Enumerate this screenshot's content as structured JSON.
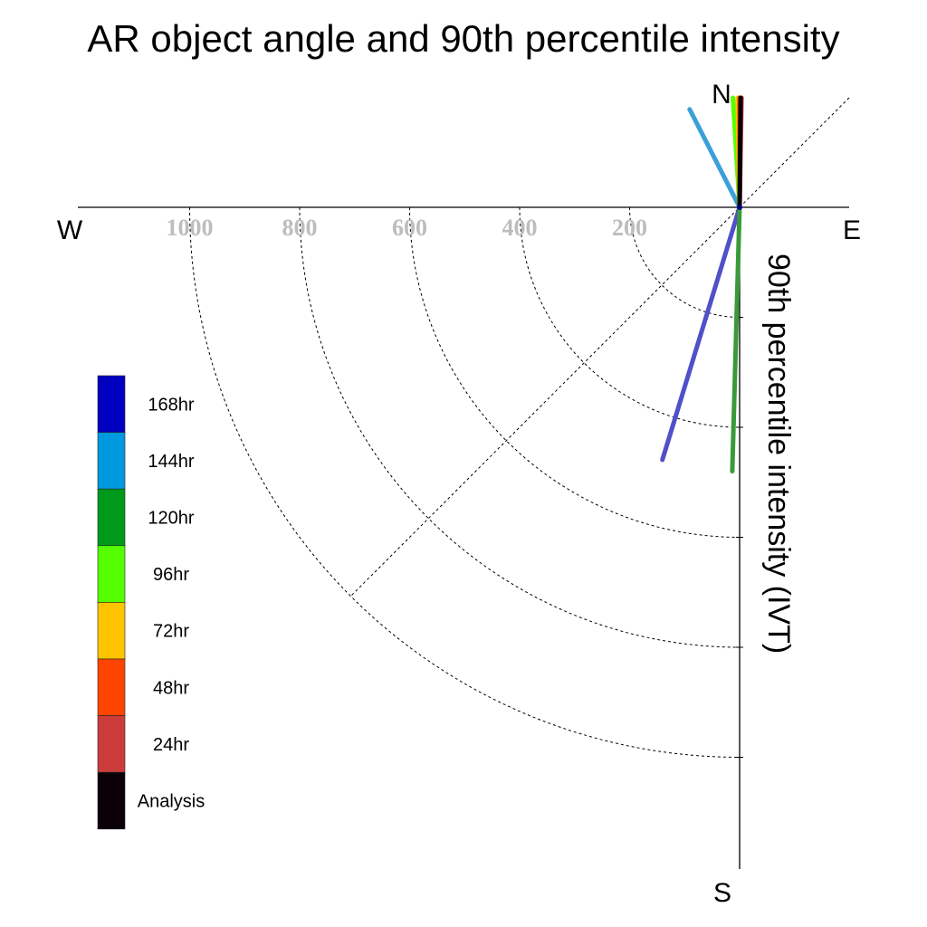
{
  "chart_data": {
    "type": "polar-quarter",
    "title": "AR object angle and 90th percentile intensity",
    "radial_label": "90th percentile intensity (IVT)",
    "directions": {
      "north": "N",
      "south": "S",
      "east": "E",
      "west": "W"
    },
    "radial_ticks": [
      200,
      400,
      600,
      800,
      1000
    ],
    "radial_tick_labels": [
      "200",
      "400",
      "600",
      "800",
      "1000"
    ],
    "rlim": [
      0,
      1000
    ],
    "grid": true,
    "legend_placement": "left",
    "legend": [
      {
        "label": "168hr",
        "color": "#0000c0"
      },
      {
        "label": "144hr",
        "color": "#0098de"
      },
      {
        "label": "120hr",
        "color": "#009a1a"
      },
      {
        "label": "96hr",
        "color": "#55ff00"
      },
      {
        "label": "72hr",
        "color": "#ffc400"
      },
      {
        "label": "48hr",
        "color": "#ff4400"
      },
      {
        "label": "24hr",
        "color": "#cc3c3c"
      },
      {
        "label": "Analysis",
        "color": "#0c0008"
      }
    ],
    "series": [
      {
        "label": "168hr",
        "color": "#5050c8",
        "angle_deg": 197,
        "intensity": 480
      },
      {
        "label": "120hr",
        "color": "#3a9a3a",
        "angle_deg": 181.6,
        "intensity": 480
      },
      {
        "label": "144hr",
        "color": "#3ca0d8",
        "angle_deg": 333,
        "intensity": 200
      },
      {
        "label": "96hr",
        "color": "#55ff00",
        "angle_deg": 356.5,
        "intensity": 200
      },
      {
        "label": "72hr",
        "color": "#ffc400",
        "angle_deg": 359,
        "intensity": 200
      },
      {
        "label": "48hr",
        "color": "#ff4400",
        "angle_deg": 0,
        "intensity": 200
      },
      {
        "label": "24hr",
        "color": "#cc3c3c",
        "angle_deg": 1,
        "intensity": 200
      },
      {
        "label": "Analysis",
        "color": "#0c0008",
        "angle_deg": 0.5,
        "intensity": 200
      }
    ]
  }
}
